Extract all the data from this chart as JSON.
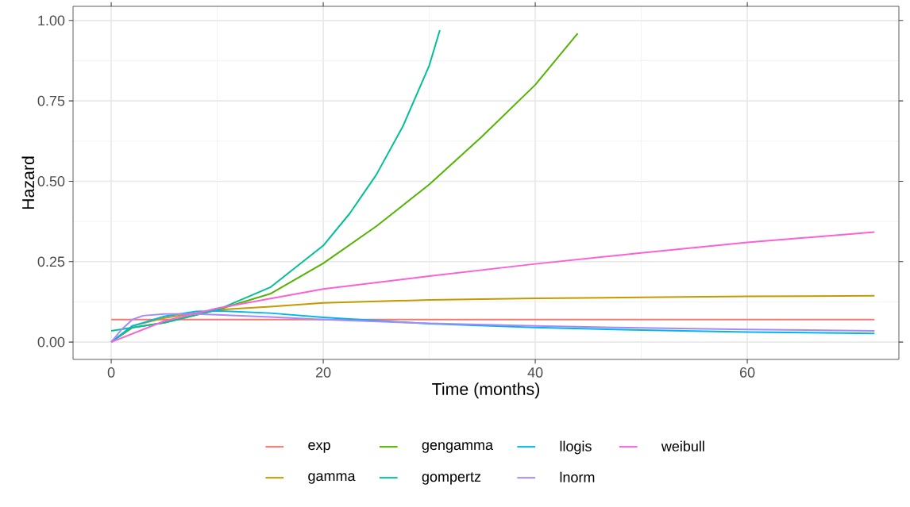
{
  "chart_data": {
    "type": "line",
    "xlabel": "Time (months)",
    "ylabel": "Hazard",
    "xlim": [
      -3.6,
      74.3
    ],
    "ylim": [
      -0.054,
      1.044
    ],
    "xticks": [
      0,
      20,
      40,
      60
    ],
    "yticks": [
      {
        "value": 0,
        "label": "0.00"
      },
      {
        "value": 0.25,
        "label": "0.25"
      },
      {
        "value": 0.5,
        "label": "0.50"
      },
      {
        "value": 0.75,
        "label": "0.75"
      },
      {
        "value": 1,
        "label": "1.00"
      }
    ],
    "grid": true,
    "legend": "bottom",
    "series": [
      {
        "name": "exp",
        "color": "#F8766D",
        "x": [
          0,
          72
        ],
        "values": [
          0.07,
          0.07
        ]
      },
      {
        "name": "gamma",
        "color": "#C49A00",
        "x": [
          0,
          2,
          5,
          10,
          15,
          20,
          30,
          40,
          50,
          60,
          72
        ],
        "values": [
          0,
          0.05,
          0.075,
          0.1,
          0.11,
          0.122,
          0.131,
          0.136,
          0.139,
          0.142,
          0.144
        ]
      },
      {
        "name": "gengamma",
        "color": "#53B400",
        "x": [
          0,
          2,
          5,
          10,
          15,
          20,
          25,
          30,
          35,
          40,
          44
        ],
        "values": [
          0,
          0.045,
          0.06,
          0.1,
          0.15,
          0.245,
          0.36,
          0.49,
          0.64,
          0.8,
          0.96
        ]
      },
      {
        "name": "gompertz",
        "color": "#00C094",
        "x": [
          0,
          5,
          10,
          15,
          20,
          22.5,
          25,
          27.5,
          30,
          31
        ],
        "values": [
          0.035,
          0.06,
          0.1,
          0.17,
          0.3,
          0.4,
          0.52,
          0.67,
          0.86,
          0.97
        ]
      },
      {
        "name": "llogis",
        "color": "#00B6EB",
        "x": [
          0,
          2,
          5,
          8,
          10,
          15,
          20,
          30,
          40,
          50,
          60,
          72
        ],
        "values": [
          0,
          0.05,
          0.08,
          0.095,
          0.097,
          0.09,
          0.077,
          0.057,
          0.045,
          0.037,
          0.031,
          0.027
        ]
      },
      {
        "name": "lnorm",
        "color": "#A58AFF",
        "x": [
          0,
          1,
          2,
          3,
          5,
          8,
          10,
          15,
          20,
          30,
          40,
          50,
          60,
          72
        ],
        "values": [
          0,
          0.04,
          0.07,
          0.082,
          0.087,
          0.087,
          0.085,
          0.078,
          0.07,
          0.058,
          0.05,
          0.044,
          0.039,
          0.035
        ]
      },
      {
        "name": "weibull",
        "color": "#FB61D7",
        "x": [
          0,
          5,
          10,
          20,
          30,
          40,
          50,
          60,
          72
        ],
        "values": [
          0,
          0.065,
          0.105,
          0.165,
          0.205,
          0.243,
          0.277,
          0.31,
          0.342
        ]
      }
    ]
  }
}
